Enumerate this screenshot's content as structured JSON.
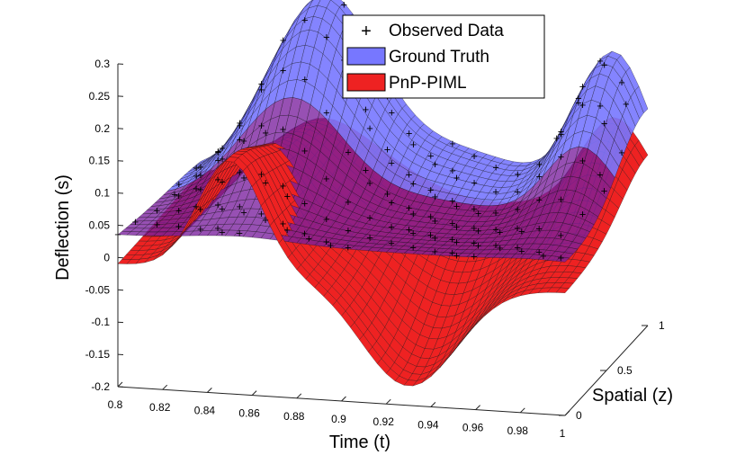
{
  "chart_data": {
    "type": "surface3d",
    "xlabel": "Time (t)",
    "ylabel": "Spatial (z)",
    "zlabel": "Deflection (s)",
    "xlim": [
      0.8,
      1.0
    ],
    "ylim": [
      0,
      1
    ],
    "zlim": [
      -0.2,
      0.3
    ],
    "x_ticks": [
      "0.8",
      "0.82",
      "0.84",
      "0.86",
      "0.88",
      "0.9",
      "0.92",
      "0.94",
      "0.96",
      "0.98",
      "1"
    ],
    "y_ticks": [
      "0",
      "0.5",
      "1"
    ],
    "z_ticks": [
      "0.3",
      "0.25",
      "0.2",
      "0.15",
      "0.1",
      "0.05",
      "0",
      "-0.05",
      "-0.1",
      "-0.15",
      "-0.2"
    ],
    "legend": [
      {
        "label": "Observed Data",
        "marker": "+",
        "color": "#22ee22"
      },
      {
        "label": "Ground Truth",
        "color": "#7777ff"
      },
      {
        "label": "PnP-PIML",
        "color": "#ee2222"
      }
    ],
    "series": [
      {
        "name": "Ground Truth",
        "description": "blue surface, peaks ~0.30 near t=0.85, ~0.25 near t=0.98 at high z",
        "peaks": [
          {
            "t": 0.855,
            "z": 1.0,
            "s": 0.3
          },
          {
            "t": 0.985,
            "z": 1.0,
            "s": 0.25
          }
        ],
        "trough": {
          "t": 0.92,
          "z": 0.5,
          "s": 0.02
        }
      },
      {
        "name": "PnP-PIML",
        "description": "red surface, peak ~0.17 near t=0.85 at low z, trough ~-0.15 near t=0.93",
        "peaks": [
          {
            "t": 0.85,
            "z": 0.0,
            "s": 0.17
          },
          {
            "t": 0.985,
            "z": 1.0,
            "s": 0.2
          }
        ],
        "trough": {
          "t": 0.93,
          "z": 0.0,
          "s": -0.15
        }
      }
    ]
  },
  "colors": {
    "ground_truth": "#7777ff",
    "pnp_piml": "#ee2222",
    "observed": "#22ee22",
    "overlap": "#7a1f9e"
  }
}
